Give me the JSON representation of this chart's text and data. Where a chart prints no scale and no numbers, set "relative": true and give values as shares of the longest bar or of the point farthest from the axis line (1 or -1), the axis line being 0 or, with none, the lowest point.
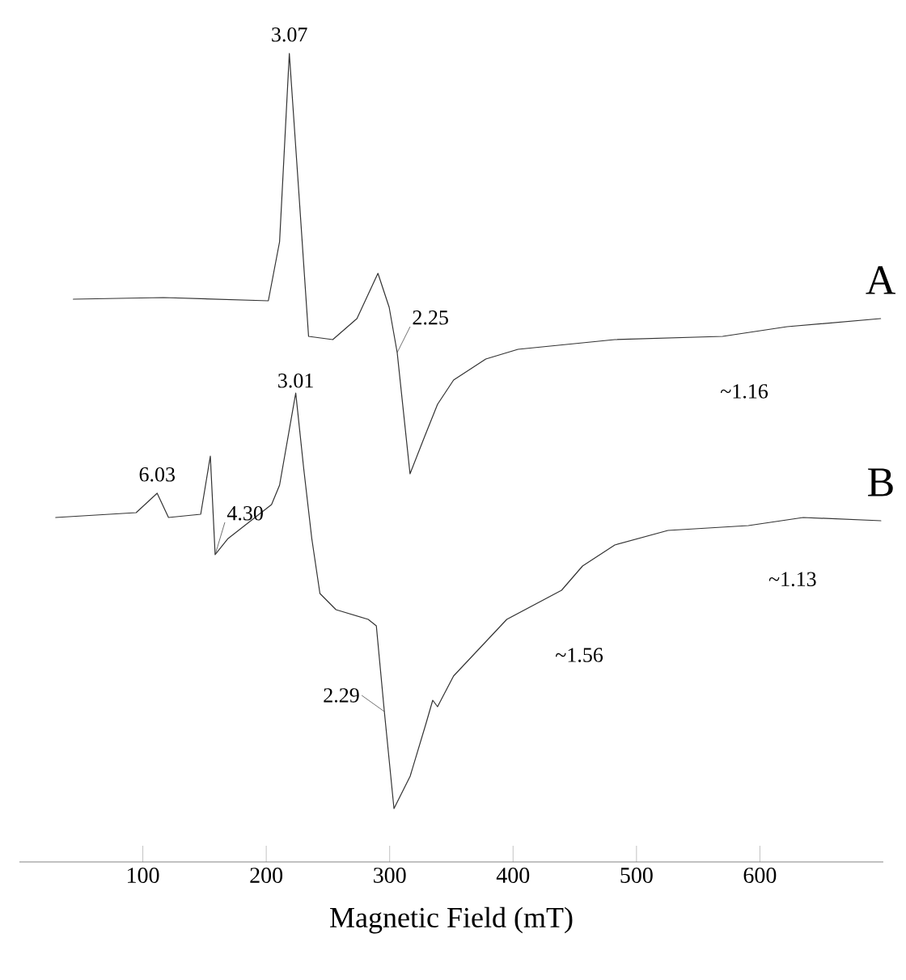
{
  "chart_data": {
    "type": "line",
    "relative": true,
    "xlabel": "Magnetic Field (mT)",
    "xlim": [
      0,
      700
    ],
    "xticks": [
      100,
      200,
      300,
      400,
      500,
      600
    ],
    "series": [
      {
        "name": "A",
        "color": "#333333",
        "x": [
          43.7,
          116.8,
          201.7,
          210.8,
          218.7,
          226.5,
          234.3,
          253.9,
          273.5,
          290.5,
          299.6,
          306.1,
          316.5,
          328.3,
          338.8,
          351.8,
          377.9,
          404.0,
          482.4,
          569.8,
          622.1,
          697.8
        ],
        "values": [
          0.696,
          0.698,
          0.694,
          0.767,
          1.0,
          0.826,
          0.65,
          0.646,
          0.672,
          0.728,
          0.686,
          0.63,
          0.48,
          0.526,
          0.566,
          0.596,
          0.622,
          0.634,
          0.646,
          0.65,
          0.662,
          0.672
        ]
      },
      {
        "name": "B",
        "color": "#333333",
        "x": [
          29.4,
          94.6,
          111.6,
          120.8,
          146.9,
          154.7,
          158.6,
          169.1,
          204.3,
          210.8,
          223.9,
          230.4,
          236.9,
          243.5,
          256.5,
          282.6,
          289.2,
          295.7,
          303.5,
          316.6,
          329.6,
          334.9,
          338.8,
          351.8,
          394.9,
          439.3,
          456.3,
          482.4,
          525.5,
          590.7,
          635.1,
          698.0
        ],
        "values": [
          0.426,
          0.432,
          0.456,
          0.426,
          0.43,
          0.502,
          0.38,
          0.4,
          0.442,
          0.466,
          0.58,
          0.486,
          0.4,
          0.332,
          0.312,
          0.3,
          0.292,
          0.186,
          0.066,
          0.106,
          0.172,
          0.2,
          0.192,
          0.23,
          0.3,
          0.336,
          0.366,
          0.392,
          0.41,
          0.416,
          0.426,
          0.422
        ]
      }
    ],
    "annotations": [
      {
        "text": "3.07",
        "x": 218.7,
        "y": 1.0
      },
      {
        "text": "2.25",
        "x": 306.1,
        "y": 0.63
      },
      "~1.16",
      {
        "text": "6.03",
        "x": 111.6,
        "y": 0.456
      },
      {
        "text": "4.30",
        "x": 158.6,
        "y": 0.38
      },
      {
        "text": "3.01",
        "x": 223.9,
        "y": 0.58
      },
      {
        "text": "2.29",
        "x": 295.7,
        "y": 0.186
      },
      "~1.56",
      "~1.13"
    ]
  }
}
